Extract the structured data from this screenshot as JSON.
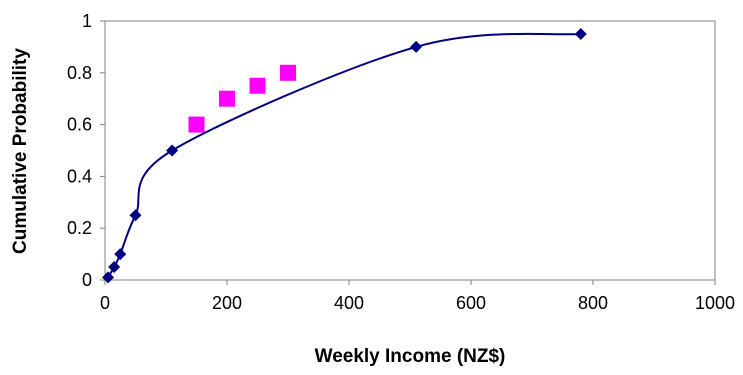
{
  "chart_data": {
    "type": "scatter",
    "title": "",
    "xlabel": "Weekly Income (NZ$)",
    "ylabel": "Cumulative Probability",
    "xlim": [
      0,
      1000
    ],
    "ylim": [
      0,
      1
    ],
    "x_ticks": [
      "0",
      "200",
      "400",
      "600",
      "800",
      "1000"
    ],
    "y_ticks": [
      "0",
      "0.2",
      "0.4",
      "0.6",
      "0.8",
      "1"
    ],
    "grid": false,
    "legend": "none",
    "series": [
      {
        "marker": "diamond",
        "color": "#000080",
        "smooth_line": true,
        "x": [
          5,
          15,
          25,
          50,
          110,
          510,
          780
        ],
        "y": [
          0.01,
          0.05,
          0.1,
          0.25,
          0.5,
          0.9,
          0.95
        ]
      },
      {
        "marker": "square",
        "color": "#ff00ff",
        "smooth_line": false,
        "x": [
          150,
          200,
          250,
          300
        ],
        "y": [
          0.6,
          0.7,
          0.75,
          0.8
        ]
      }
    ]
  }
}
